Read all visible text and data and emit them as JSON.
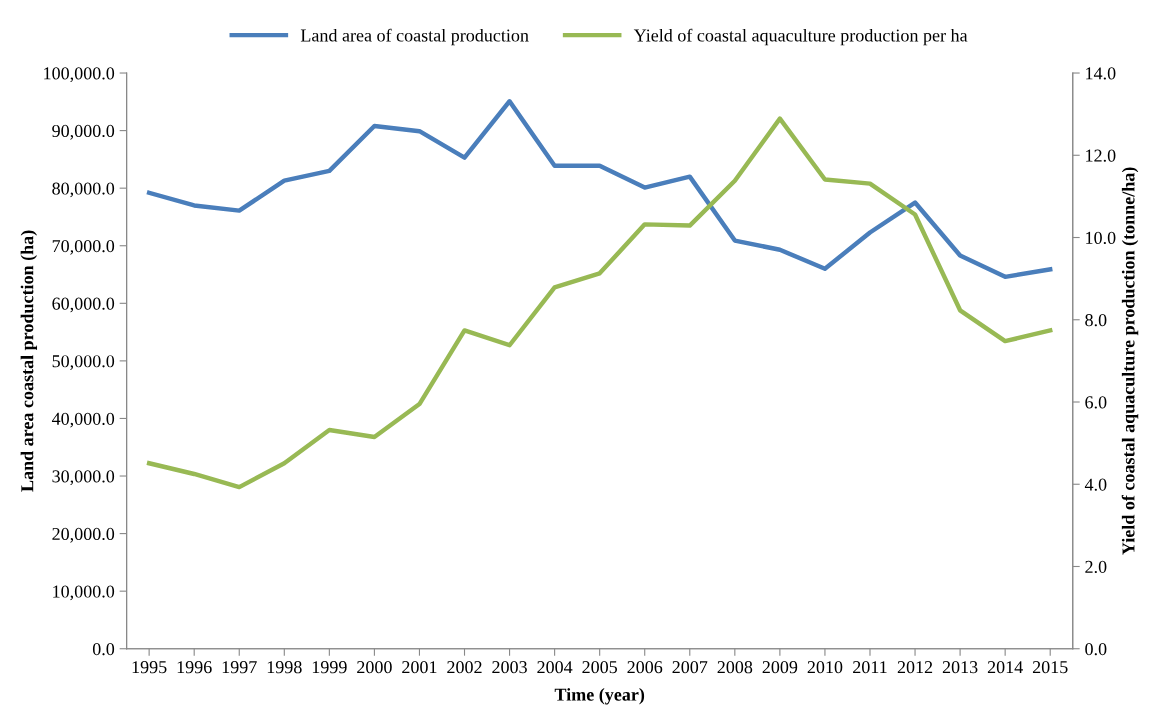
{
  "chart_data": {
    "type": "line",
    "xlabel": "Time (year)",
    "ylabel": "Land area coastal production (ha)",
    "y2label": "Yield of coastal aquaculture production (tonne/ha)",
    "categories": [
      "1995",
      "1996",
      "1997",
      "1998",
      "1999",
      "2000",
      "2001",
      "2002",
      "2003",
      "2004",
      "2005",
      "2006",
      "2007",
      "2008",
      "2009",
      "2010",
      "2011",
      "2012",
      "2013",
      "2014",
      "2015"
    ],
    "series": [
      {
        "name": "Land area of coastal production",
        "color": "#4a7ebb",
        "values": [
          79200,
          77000,
          76100,
          81300,
          83000,
          90800,
          89900,
          85300,
          95100,
          83900,
          83900,
          80100,
          82000,
          70900,
          69300,
          66000,
          72300,
          77500,
          68300,
          64600,
          65900
        ]
      },
      {
        "name": "Yield of coastal aquaculture production per ha",
        "color": "#98b954",
        "axis": "y2",
        "values": [
          4.51,
          4.25,
          3.93,
          4.51,
          5.32,
          5.15,
          5.95,
          7.74,
          7.38,
          8.79,
          9.13,
          10.32,
          10.29,
          11.38,
          12.89,
          11.41,
          11.31,
          10.56,
          8.23,
          7.48,
          7.74
        ]
      }
    ],
    "ylim": [
      0,
      100000
    ],
    "yticks": [
      {
        "value": 0,
        "label": "0.0"
      },
      {
        "value": 10000,
        "label": "10,000.0"
      },
      {
        "value": 20000,
        "label": "20,000.0"
      },
      {
        "value": 30000,
        "label": "30,000.0"
      },
      {
        "value": 40000,
        "label": "40,000.0"
      },
      {
        "value": 50000,
        "label": "50,000.0"
      },
      {
        "value": 60000,
        "label": "60,000.0"
      },
      {
        "value": 70000,
        "label": "70,000.0"
      },
      {
        "value": 80000,
        "label": "80,000.0"
      },
      {
        "value": 90000,
        "label": "90,000.0"
      },
      {
        "value": 100000,
        "label": "100,000.0"
      }
    ],
    "y2lim": [
      0,
      14
    ],
    "y2ticks": [
      {
        "value": 0,
        "label": "0.0"
      },
      {
        "value": 2,
        "label": "2.0"
      },
      {
        "value": 4,
        "label": "4.0"
      },
      {
        "value": 6,
        "label": "6.0"
      },
      {
        "value": 8,
        "label": "8.0"
      },
      {
        "value": 10,
        "label": "10.0"
      },
      {
        "value": 12,
        "label": "12.0"
      },
      {
        "value": 14,
        "label": "14.0"
      }
    ],
    "legend": "top",
    "grid": false,
    "marker": "none",
    "line_style": "solid"
  }
}
